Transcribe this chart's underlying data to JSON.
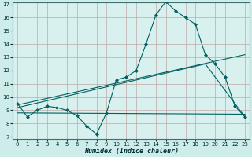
{
  "xlabel": "Humidex (Indice chaleur)",
  "bg_color": "#cdecea",
  "plot_bg_color": "#d8f0ee",
  "grid_color": "#c0a8a8",
  "line_color": "#006060",
  "ylim": [
    7,
    17
  ],
  "xlim": [
    -0.5,
    23.5
  ],
  "yticks": [
    7,
    8,
    9,
    10,
    11,
    12,
    13,
    14,
    15,
    16,
    17
  ],
  "xticks": [
    0,
    1,
    2,
    3,
    4,
    5,
    6,
    7,
    8,
    9,
    10,
    11,
    12,
    13,
    14,
    15,
    16,
    17,
    18,
    19,
    20,
    21,
    22,
    23
  ],
  "main_line_x": [
    0,
    1,
    2,
    3,
    4,
    5,
    6,
    7,
    8,
    9,
    10,
    11,
    12,
    13,
    14,
    15,
    16,
    17,
    18,
    19,
    20,
    21,
    22,
    23
  ],
  "main_line_y": [
    9.5,
    8.5,
    9.0,
    9.3,
    9.2,
    9.0,
    8.6,
    7.8,
    7.2,
    8.8,
    11.3,
    11.5,
    12.0,
    14.0,
    16.2,
    17.2,
    16.5,
    16.0,
    15.5,
    13.2,
    12.5,
    11.5,
    9.3,
    8.5
  ],
  "trend_line1_x": [
    0,
    23
  ],
  "trend_line1_y": [
    9.4,
    13.2
  ],
  "trend_line2_x": [
    0,
    19,
    23
  ],
  "trend_line2_y": [
    9.2,
    12.5,
    8.5
  ],
  "flat_line_x": [
    0,
    23
  ],
  "flat_line_y": [
    8.8,
    8.7
  ],
  "marker_size": 3,
  "line_width": 0.8,
  "xlabel_fontsize": 6,
  "tick_fontsize": 5
}
